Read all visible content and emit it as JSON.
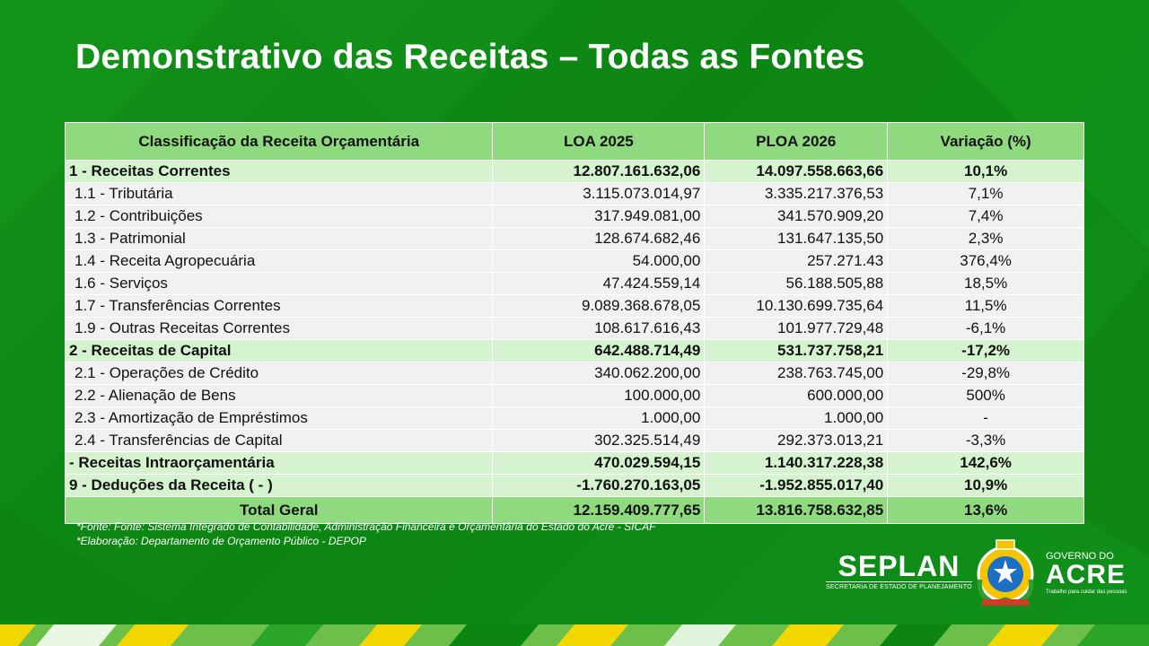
{
  "title": "Demonstrativo das Receitas – Todas as Fontes",
  "table": {
    "headers": [
      "Classificação da Receita Orçamentária",
      "LOA 2025",
      "PLOA 2026",
      "Variação (%)"
    ],
    "rows": [
      {
        "kind": "group",
        "label": "1 - Receitas Correntes",
        "loa": "12.807.161.632,06",
        "ploa": "14.097.558.663,66",
        "var": "10,1%"
      },
      {
        "kind": "sub",
        "label": "1.1 - Tributária",
        "loa": "3.115.073.014,97",
        "ploa": "3.335.217.376,53",
        "var": "7,1%"
      },
      {
        "kind": "sub",
        "label": "1.2 - Contribuições",
        "loa": "317.949.081,00",
        "ploa": "341.570.909,20",
        "var": "7,4%"
      },
      {
        "kind": "sub",
        "label": "1.3 - Patrimonial",
        "loa": "128.674.682,46",
        "ploa": "131.647.135,50",
        "var": "2,3%"
      },
      {
        "kind": "sub",
        "label": "1.4 - Receita Agropecuária",
        "loa": "54.000,00",
        "ploa": "257.271.43",
        "var": "376,4%"
      },
      {
        "kind": "sub",
        "label": "1.6 - Serviços",
        "loa": "47.424.559,14",
        "ploa": "56.188.505,88",
        "var": "18,5%"
      },
      {
        "kind": "sub",
        "label": "1.7 - Transferências Correntes",
        "loa": "9.089.368.678,05",
        "ploa": "10.130.699.735,64",
        "var": "11,5%"
      },
      {
        "kind": "sub",
        "label": "1.9 - Outras Receitas Correntes",
        "loa": "108.617.616,43",
        "ploa": "101.977.729,48",
        "var": "-6,1%"
      },
      {
        "kind": "group",
        "label": "2 - Receitas de Capital",
        "loa": "642.488.714,49",
        "ploa": "531.737.758,21",
        "var": "-17,2%"
      },
      {
        "kind": "sub",
        "label": "2.1 - Operações de Crédito",
        "loa": "340.062.200,00",
        "ploa": "238.763.745,00",
        "var": "-29,8%"
      },
      {
        "kind": "sub",
        "label": "2.2 - Alienação de Bens",
        "loa": "100.000,00",
        "ploa": "600.000,00",
        "var": "500%"
      },
      {
        "kind": "sub",
        "label": "2.3 - Amortização de Empréstimos",
        "loa": "1.000,00",
        "ploa": "1.000,00",
        "var": "-"
      },
      {
        "kind": "sub",
        "label": "2.4 - Transferências de Capital",
        "loa": "302.325.514,49",
        "ploa": "292.373.013,21",
        "var": "-3,3%"
      },
      {
        "kind": "group",
        "label": " - Receitas Intraorçamentária",
        "loa": "470.029.594,15",
        "ploa": "1.140.317.228,38",
        "var": "142,6%"
      },
      {
        "kind": "group",
        "label": "9 - Deduções da Receita ( - )",
        "loa": "-1.760.270.163,05",
        "ploa": "-1.952.855.017,40",
        "var": "10,9%"
      },
      {
        "kind": "total",
        "label": "Total Geral",
        "loa": "12.159.409.777,65",
        "ploa": "13.816.758.632,85",
        "var": "13,6%"
      }
    ]
  },
  "notes": [
    "*Fonte: Fonte: Sistema Integrado de Contabilidade, Administração Financeira e Orçamentária do Estado do Acre - SICAF",
    "*Elaboração: Departamento  de Orçamento Público - DEPOP"
  ],
  "logos": {
    "seplan": "SEPLAN",
    "seplan_sub": "SECRETARIA DE ESTADO DE PLANEJAMENTO",
    "gov_line1": "GOVERNO DO",
    "gov_line2": "ACRE",
    "gov_tagline": "Trabalho para cuidar das pessoas"
  },
  "colors": {
    "background": "#0f8a16",
    "header": "#8fda7e",
    "group_row": "#d6f3cf",
    "sub_row": "#f1f1f1",
    "footer_yellow": "#f2d600",
    "footer_green": "#6cc04a"
  }
}
